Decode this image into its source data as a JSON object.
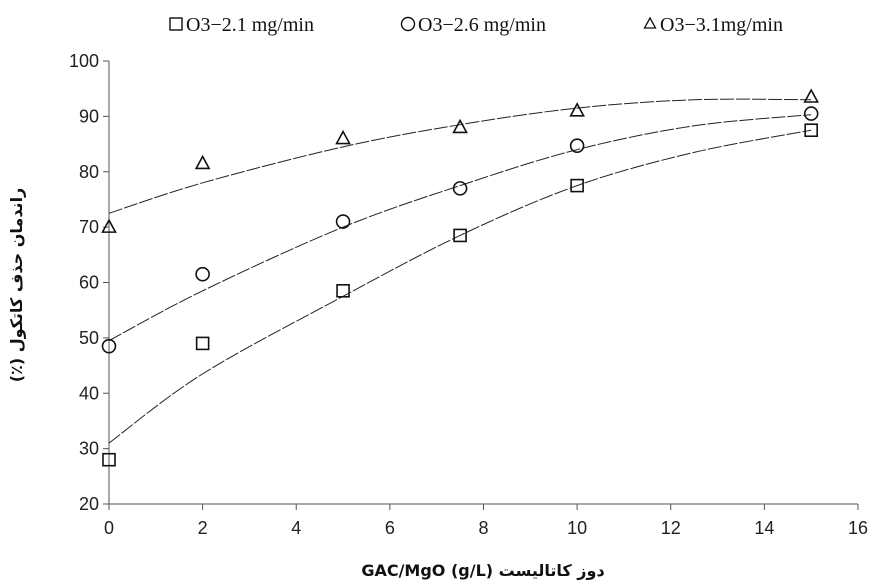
{
  "chart_data": {
    "type": "scatter",
    "xlabel": "دوز کاتالیست GAC/MgO (g/L)",
    "ylabel": "راندمان حذف کاتکول (٪)",
    "xlim": [
      0,
      16
    ],
    "ylim": [
      20,
      100
    ],
    "xticks": [
      0,
      2,
      4,
      6,
      8,
      10,
      12,
      14,
      16
    ],
    "yticks": [
      20,
      30,
      40,
      50,
      60,
      70,
      80,
      90,
      100
    ],
    "grid": false,
    "legend_position": "top",
    "series": [
      {
        "name": "O3−2.1 mg/min",
        "marker": "square",
        "x": [
          0,
          2,
          5,
          7.5,
          10,
          15
        ],
        "y": [
          28,
          49,
          58.5,
          68.5,
          77.5,
          87.5
        ],
        "trend": {
          "type": "polynomial",
          "points": [
            [
              0,
              31
            ],
            [
              2,
              43.5
            ],
            [
              5,
              57.5
            ],
            [
              7.5,
              68.5
            ],
            [
              10,
              77.5
            ],
            [
              12.5,
              83.5
            ],
            [
              15,
              87.5
            ]
          ]
        }
      },
      {
        "name": "O3−2.6 mg/min",
        "marker": "circle",
        "x": [
          0,
          2,
          5,
          7.5,
          10,
          15
        ],
        "y": [
          48.5,
          61.5,
          71,
          77,
          84.7,
          90.5
        ],
        "trend": {
          "type": "polynomial",
          "points": [
            [
              0,
              49.5
            ],
            [
              2,
              58.5
            ],
            [
              5,
              70
            ],
            [
              7.5,
              77.5
            ],
            [
              10,
              84
            ],
            [
              12.5,
              88.3
            ],
            [
              15,
              90.3
            ]
          ]
        }
      },
      {
        "name": "O3−3.1mg/min",
        "marker": "triangle",
        "x": [
          0,
          2,
          5,
          7.5,
          10,
          15
        ],
        "y": [
          70,
          81.5,
          86,
          88,
          91,
          93.5
        ],
        "trend": {
          "type": "polynomial",
          "points": [
            [
              0,
              72.5
            ],
            [
              2,
              78
            ],
            [
              5,
              84.5
            ],
            [
              7.5,
              88.5
            ],
            [
              10,
              91.5
            ],
            [
              12.5,
              93
            ],
            [
              15,
              93
            ]
          ]
        }
      }
    ]
  }
}
